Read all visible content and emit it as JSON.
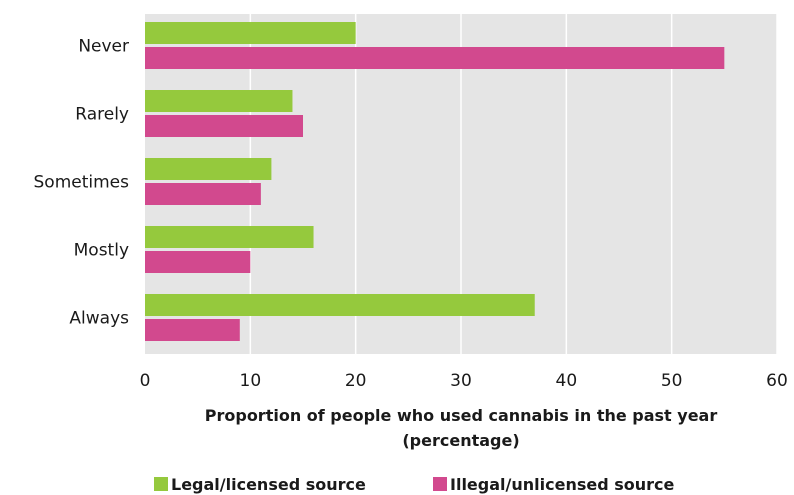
{
  "chart_data": {
    "type": "bar",
    "orientation": "horizontal",
    "categories": [
      "Never",
      "Rarely",
      "Sometimes",
      "Mostly",
      "Always"
    ],
    "series": [
      {
        "name": "Legal/licensed source",
        "values": [
          20,
          14,
          12,
          16,
          37
        ],
        "color": "#95c93d"
      },
      {
        "name": "Illegal/unlicensed source",
        "values": [
          55,
          15,
          11,
          10,
          9
        ],
        "color": "#d2498e"
      }
    ],
    "xlabel_line1": "Proportion of people who used cannabis in the past year",
    "xlabel_line2": "(percentage)",
    "xlim": [
      0,
      60
    ],
    "xticks": [
      0,
      10,
      20,
      30,
      40,
      50,
      60
    ],
    "grid": true,
    "grid_color": "#ffffff",
    "plot_background": "#e5e5e5",
    "legend_placement": "bottom"
  }
}
